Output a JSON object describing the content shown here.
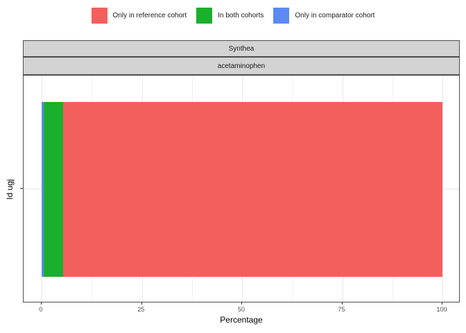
{
  "chart_data": {
    "type": "bar",
    "orientation": "horizontal",
    "stacked": true,
    "title": "",
    "facets": [
      "Synthea",
      "acetaminophen"
    ],
    "categories": [
      "Id ugj"
    ],
    "series": [
      {
        "name": "Only in reference cohort",
        "color": "#f25f5c",
        "values": [
          94.7
        ]
      },
      {
        "name": "In both cohorts",
        "color": "#1aaf2d",
        "values": [
          4.8
        ]
      },
      {
        "name": "Only in comparator cohort",
        "color": "#5b8af5",
        "values": [
          0.5
        ]
      }
    ],
    "stack_order_note": "segments drawn left-to-right in reverse of legend order: comparator 0.5, both 4.8, reference 94.7",
    "xlabel": "Percentage",
    "ylabel": "Id ugj",
    "xlim": [
      0,
      100
    ],
    "x_ticks": [
      0,
      25,
      50,
      75,
      100
    ],
    "x_minor_ticks": [
      12.5,
      37.5,
      62.5,
      87.5
    ],
    "legend_position": "top",
    "grid": true
  },
  "legend": {
    "items": [
      {
        "label": "Only in reference cohort",
        "color": "#f25f5c"
      },
      {
        "label": "In both cohorts",
        "color": "#1aaf2d"
      },
      {
        "label": "Only in comparator cohort",
        "color": "#5b8af5"
      }
    ]
  },
  "facet_strips": {
    "dataset": "Synthea",
    "cohort": "acetaminophen"
  },
  "x_axis": {
    "title": "Percentage"
  },
  "y_axis": {
    "title": "Id ugj"
  },
  "colors": {
    "strip_fill": "#d3d3d3",
    "strip_border": "#4d4d4d",
    "panel_border": "#4d4d4d",
    "grid_major": "#e7e7e7",
    "grid_minor": "#f2f2f2",
    "tick_label": "#4d4d4d"
  }
}
